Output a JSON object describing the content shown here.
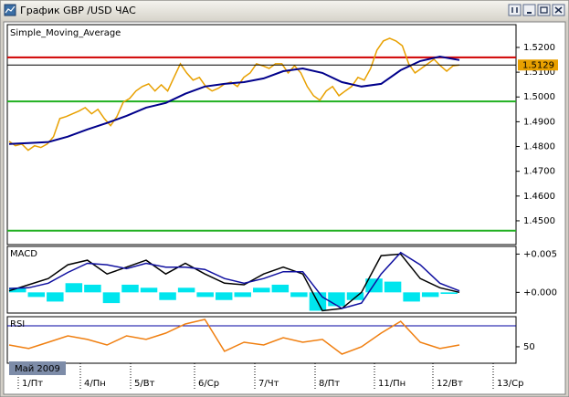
{
  "window": {
    "title": "График GBP /USD  ЧАС"
  },
  "chart_data": [
    {
      "type": "line",
      "ylim": [
        1.4404,
        1.5292
      ],
      "yticks": [
        {
          "value": 1.52,
          "label": "1.5200"
        },
        {
          "value": 1.51,
          "label": "1.5100"
        },
        {
          "value": 1.5,
          "label": "1.5000"
        },
        {
          "value": 1.49,
          "label": "1.4900"
        },
        {
          "value": 1.48,
          "label": "1.4800"
        },
        {
          "value": 1.47,
          "label": "1.4700"
        },
        {
          "value": 1.46,
          "label": "1.4600"
        },
        {
          "value": 1.45,
          "label": "1.4500"
        }
      ],
      "levels": [
        {
          "value": 1.516,
          "color": "#d00000"
        },
        {
          "value": 1.4982,
          "color": "#20b020"
        },
        {
          "value": 1.446,
          "color": "#20b020"
        }
      ],
      "last_price": {
        "value": 1.5129,
        "label": "1.5129",
        "color": "#e8a000"
      },
      "series": [
        {
          "color": "#e8a000",
          "values": [
            1.4821,
            1.4803,
            1.481,
            1.4785,
            1.4803,
            1.4796,
            1.481,
            1.484,
            1.4913,
            1.4921,
            1.4932,
            1.4943,
            1.4957,
            1.4932,
            1.495,
            1.4913,
            1.4884,
            1.4921,
            1.4979,
            1.4994,
            1.5024,
            1.5042,
            1.5053,
            1.5024,
            1.5049,
            1.5024,
            1.5079,
            1.5134,
            1.5097,
            1.5068,
            1.5079,
            1.5042,
            1.5024,
            1.5035,
            1.5053,
            1.506,
            1.5042,
            1.5079,
            1.5097,
            1.5134,
            1.5126,
            1.5115,
            1.5134,
            1.5134,
            1.5097,
            1.5126,
            1.5097,
            1.5042,
            1.5005,
            1.4987,
            1.5024,
            1.5042,
            1.5005,
            1.5024,
            1.5042,
            1.5079,
            1.5068,
            1.5115,
            1.5189,
            1.5226,
            1.5237,
            1.5226,
            1.5207,
            1.5134,
            1.5097,
            1.5115,
            1.5134,
            1.5152,
            1.5126,
            1.5104,
            1.5126,
            1.5129
          ]
        },
        {
          "name": "Simple_Moving_Average",
          "color": "#00008b",
          "values": [
            1.481,
            1.4814,
            1.4818,
            1.484,
            1.4869,
            1.4895,
            1.4924,
            1.4957,
            1.4976,
            1.5013,
            1.5042,
            1.5053,
            1.506,
            1.5075,
            1.5104,
            1.5115,
            1.5097,
            1.506,
            1.5042,
            1.5053,
            1.5108,
            1.5145,
            1.5163,
            1.5149
          ]
        }
      ]
    },
    {
      "type": "macd",
      "title": "MACD",
      "ylim": [
        -0.0027,
        0.006
      ],
      "yticks": [
        {
          "value": 0.005,
          "label": "+0.005"
        },
        {
          "value": 0,
          "label": "+0.000"
        }
      ],
      "series": [
        {
          "type": "bar",
          "color": "#00e5ee",
          "values": [
            0.0006,
            -0.0006,
            -0.0012,
            0.0012,
            0.001,
            -0.0014,
            0.001,
            0.0006,
            -0.001,
            0.0006,
            -0.0006,
            -0.001,
            -0.0006,
            0.0006,
            0.001,
            -0.0006,
            -0.0024,
            -0.0018,
            -0.001,
            0.0018,
            0.0014,
            -0.0012,
            -0.0006,
            -0.0002
          ]
        },
        {
          "color": "#000000",
          "values": [
            0.0002,
            0.001,
            0.0018,
            0.0036,
            0.0042,
            0.0024,
            0.0033,
            0.0042,
            0.0024,
            0.0038,
            0.0024,
            0.0012,
            0.001,
            0.0024,
            0.0033,
            0.0024,
            -0.0024,
            -0.0021,
            0,
            0.0048,
            0.005,
            0.0018,
            0.0006,
            0
          ]
        },
        {
          "color": "#1010a0",
          "values": [
            0.0005,
            0.0006,
            0.0012,
            0.0026,
            0.0038,
            0.0036,
            0.0031,
            0.0038,
            0.0033,
            0.0033,
            0.003,
            0.0018,
            0.0012,
            0.0018,
            0.0027,
            0.0027,
            -0.0006,
            -0.0021,
            -0.0014,
            0.0024,
            0.0052,
            0.0036,
            0.0012,
            0.0002
          ]
        }
      ]
    },
    {
      "type": "line",
      "title": "RSI",
      "ylim": [
        34.3,
        78.7
      ],
      "yticks": [
        50
      ],
      "levels": [
        {
          "value": 70,
          "color": "#0000a0"
        }
      ],
      "series": [
        {
          "color": "#f07f10",
          "values": [
            51.7,
            48.3,
            54.3,
            60.4,
            57,
            51.7,
            60.4,
            57,
            63,
            71.7,
            76.1,
            45.7,
            54.3,
            51.7,
            58.7,
            54.3,
            57,
            43,
            50,
            63,
            74.3,
            54.3,
            48.3,
            51.7
          ]
        }
      ]
    }
  ],
  "x_axis": {
    "labels": [
      "1/Пт",
      "4/Пн",
      "5/Вт",
      "6/Ср",
      "7/Чт",
      "8/Пт",
      "11/Пн",
      "12/Вт",
      "13/Ср"
    ],
    "period": "Май 2009"
  }
}
